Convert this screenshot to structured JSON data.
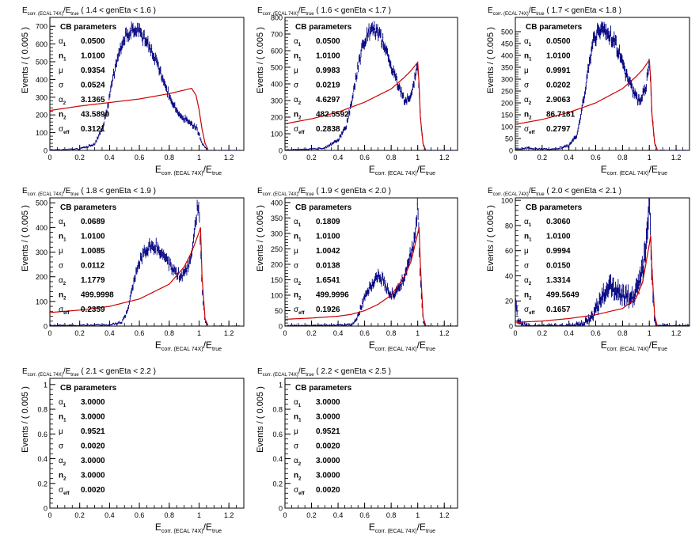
{
  "chart_data": [
    {
      "type": "histogram",
      "title_var": "E",
      "title_var_sub": "corr. (ECAL 74X)",
      "title_den": "E",
      "title_den_sub": "true",
      "title_range": "( 1.4 < genEta < 1.6 )",
      "ylabel": "Events / ( 0.005 )",
      "xlabel_main": "E",
      "xlabel_sub": "corr. (ECAL 74X)",
      "xlabel_den": "E",
      "xlabel_den_sub": "true",
      "xlim": [
        0,
        1.3
      ],
      "ylim": [
        0,
        750
      ],
      "x_ticks": [
        "0",
        "0.2",
        "0.4",
        "0.6",
        "0.8",
        "1",
        "1.2"
      ],
      "y_ticks": [
        0,
        100,
        200,
        300,
        400,
        500,
        600,
        700
      ],
      "legend_title": "CB parameters",
      "params": [
        {
          "sym": "α",
          "sub": "1",
          "value": "0.0500"
        },
        {
          "sym": "n",
          "sub": "1",
          "value": "1.0100"
        },
        {
          "sym": "μ",
          "sub": "",
          "value": "0.9354"
        },
        {
          "sym": "σ",
          "sub": "",
          "value": "0.0524"
        },
        {
          "sym": "α",
          "sub": "2",
          "value": "3.1365"
        },
        {
          "sym": "n",
          "sub": "2",
          "value": "43.5890"
        },
        {
          "sym": "σ",
          "sub": "eff",
          "value": "0.3121"
        }
      ],
      "data_series": {
        "color": "#000080",
        "x": [
          0.02,
          0.1,
          0.2,
          0.3,
          0.34,
          0.38,
          0.42,
          0.46,
          0.5,
          0.54,
          0.58,
          0.6,
          0.62,
          0.66,
          0.7,
          0.74,
          0.78,
          0.82,
          0.86,
          0.9,
          0.94,
          0.98,
          1.0,
          1.02,
          1.04,
          1.06
        ],
        "y": [
          3,
          5,
          8,
          35,
          100,
          210,
          390,
          540,
          630,
          680,
          690,
          670,
          640,
          600,
          520,
          440,
          350,
          270,
          210,
          180,
          150,
          130,
          90,
          45,
          15,
          3
        ]
      },
      "fit_series": {
        "color": "#cc0000",
        "x": [
          0.0,
          0.2,
          0.4,
          0.6,
          0.8,
          0.9,
          0.95,
          0.98,
          1.0,
          1.02,
          1.04,
          1.06
        ],
        "y": [
          225,
          250,
          270,
          290,
          320,
          340,
          350,
          310,
          230,
          120,
          40,
          5
        ]
      }
    },
    {
      "type": "histogram",
      "title_var": "E",
      "title_var_sub": "corr. (ECAL 74X)",
      "title_den": "E",
      "title_den_sub": "true",
      "title_range": "( 1.6 < genEta < 1.7 )",
      "ylabel": "Events / ( 0.005 )",
      "xlabel_main": "E",
      "xlabel_sub": "corr. (ECAL 74X)",
      "xlabel_den": "E",
      "xlabel_den_sub": "true",
      "xlim": [
        0,
        1.3
      ],
      "ylim": [
        0,
        800
      ],
      "x_ticks": [
        "0",
        "0.2",
        "0.4",
        "0.6",
        "0.8",
        "1",
        "1.2"
      ],
      "y_ticks": [
        0,
        100,
        200,
        300,
        400,
        500,
        600,
        700,
        800
      ],
      "legend_title": "CB parameters",
      "params": [
        {
          "sym": "α",
          "sub": "1",
          "value": "0.0500"
        },
        {
          "sym": "n",
          "sub": "1",
          "value": "1.0100"
        },
        {
          "sym": "μ",
          "sub": "",
          "value": "0.9983"
        },
        {
          "sym": "σ",
          "sub": "",
          "value": "0.0219"
        },
        {
          "sym": "α",
          "sub": "2",
          "value": "4.6297"
        },
        {
          "sym": "n",
          "sub": "2",
          "value": "482.5592"
        },
        {
          "sym": "σ",
          "sub": "eff",
          "value": "0.2838"
        }
      ],
      "data_series": {
        "color": "#000080",
        "x": [
          0.02,
          0.1,
          0.2,
          0.3,
          0.4,
          0.46,
          0.5,
          0.54,
          0.58,
          0.62,
          0.66,
          0.7,
          0.74,
          0.78,
          0.82,
          0.86,
          0.9,
          0.94,
          0.97,
          1.0,
          1.02,
          1.04,
          1.06
        ],
        "y": [
          3,
          5,
          8,
          15,
          60,
          140,
          280,
          460,
          610,
          700,
          730,
          710,
          650,
          560,
          460,
          380,
          300,
          320,
          400,
          520,
          200,
          40,
          3
        ]
      },
      "fit_series": {
        "color": "#cc0000",
        "x": [
          0.0,
          0.2,
          0.4,
          0.6,
          0.8,
          0.9,
          0.95,
          1.0,
          1.01,
          1.02,
          1.04,
          1.06
        ],
        "y": [
          160,
          190,
          230,
          290,
          370,
          440,
          480,
          530,
          400,
          200,
          40,
          3
        ]
      }
    },
    {
      "type": "histogram",
      "title_var": "E",
      "title_var_sub": "corr. (ECAL 74X)",
      "title_den": "E",
      "title_den_sub": "true",
      "title_range": "( 1.7 < genEta < 1.8 )",
      "ylabel": "Events / ( 0.005 )",
      "xlabel_main": "E",
      "xlabel_sub": "corr. (ECAL 74X)",
      "xlabel_den": "E",
      "xlabel_den_sub": "true",
      "xlim": [
        0,
        1.3
      ],
      "ylim": [
        0,
        560
      ],
      "x_ticks": [
        "0",
        "0.2",
        "0.4",
        "0.6",
        "0.8",
        "1",
        "1.2"
      ],
      "y_ticks": [
        0,
        50,
        100,
        150,
        200,
        250,
        300,
        350,
        400,
        450,
        500
      ],
      "legend_title": "CB parameters",
      "params": [
        {
          "sym": "α",
          "sub": "1",
          "value": "0.0500"
        },
        {
          "sym": "n",
          "sub": "1",
          "value": "1.0100"
        },
        {
          "sym": "μ",
          "sub": "",
          "value": "0.9991"
        },
        {
          "sym": "σ",
          "sub": "",
          "value": "0.0202"
        },
        {
          "sym": "α",
          "sub": "2",
          "value": "2.9063"
        },
        {
          "sym": "n",
          "sub": "2",
          "value": "86.7181"
        },
        {
          "sym": "σ",
          "sub": "eff",
          "value": "0.2797"
        }
      ],
      "data_series": {
        "color": "#000080",
        "x": [
          0.02,
          0.1,
          0.2,
          0.3,
          0.4,
          0.46,
          0.5,
          0.54,
          0.58,
          0.62,
          0.66,
          0.7,
          0.74,
          0.78,
          0.82,
          0.86,
          0.9,
          0.94,
          0.98,
          1.0,
          1.02,
          1.04,
          1.06
        ],
        "y": [
          5,
          10,
          5,
          5,
          20,
          60,
          180,
          330,
          450,
          500,
          510,
          490,
          460,
          400,
          330,
          270,
          220,
          210,
          280,
          390,
          150,
          30,
          3
        ]
      },
      "fit_series": {
        "color": "#cc0000",
        "x": [
          0.0,
          0.2,
          0.4,
          0.6,
          0.8,
          0.9,
          0.95,
          1.0,
          1.01,
          1.02,
          1.04,
          1.06
        ],
        "y": [
          110,
          130,
          160,
          200,
          260,
          310,
          340,
          380,
          300,
          150,
          30,
          3
        ]
      }
    },
    {
      "type": "histogram",
      "title_var": "E",
      "title_var_sub": "corr. (ECAL 74X)",
      "title_den": "E",
      "title_den_sub": "true",
      "title_range": "( 1.8 < genEta < 1.9 )",
      "ylabel": "Events / ( 0.005 )",
      "xlabel_main": "E",
      "xlabel_sub": "corr. (ECAL 74X)",
      "xlabel_den": "E",
      "xlabel_den_sub": "true",
      "xlim": [
        0,
        1.3
      ],
      "ylim": [
        0,
        520
      ],
      "x_ticks": [
        "0",
        "0.2",
        "0.4",
        "0.6",
        "0.8",
        "1",
        "1.2"
      ],
      "y_ticks": [
        0,
        100,
        200,
        300,
        400,
        500
      ],
      "legend_title": "CB parameters",
      "params": [
        {
          "sym": "α",
          "sub": "1",
          "value": "0.0689"
        },
        {
          "sym": "n",
          "sub": "1",
          "value": "1.0100"
        },
        {
          "sym": "μ",
          "sub": "",
          "value": "1.0085"
        },
        {
          "sym": "σ",
          "sub": "",
          "value": "0.0112"
        },
        {
          "sym": "α",
          "sub": "2",
          "value": "1.1779"
        },
        {
          "sym": "n",
          "sub": "2",
          "value": "499.9998"
        },
        {
          "sym": "σ",
          "sub": "eff",
          "value": "0.2359"
        }
      ],
      "data_series": {
        "color": "#000080",
        "x": [
          0.02,
          0.2,
          0.4,
          0.48,
          0.52,
          0.56,
          0.6,
          0.64,
          0.68,
          0.72,
          0.76,
          0.8,
          0.84,
          0.88,
          0.92,
          0.96,
          0.99,
          1.0,
          1.02,
          1.04,
          1.06
        ],
        "y": [
          3,
          3,
          5,
          15,
          60,
          170,
          260,
          310,
          330,
          320,
          290,
          250,
          220,
          200,
          230,
          330,
          480,
          500,
          150,
          20,
          3
        ]
      },
      "fit_series": {
        "color": "#cc0000",
        "x": [
          0.0,
          0.2,
          0.4,
          0.6,
          0.8,
          0.9,
          0.95,
          1.0,
          1.01,
          1.02,
          1.04,
          1.06
        ],
        "y": [
          55,
          65,
          80,
          110,
          170,
          240,
          300,
          380,
          400,
          200,
          30,
          3
        ]
      }
    },
    {
      "type": "histogram",
      "title_var": "E",
      "title_var_sub": "corr. (ECAL 74X)",
      "title_den": "E",
      "title_den_sub": "true",
      "title_range": "( 1.9 < genEta < 2.0 )",
      "ylabel": "Events / ( 0.005 )",
      "xlabel_main": "E",
      "xlabel_sub": "corr. (ECAL 74X)",
      "xlabel_den": "E",
      "xlabel_den_sub": "true",
      "xlim": [
        0,
        1.3
      ],
      "ylim": [
        0,
        415
      ],
      "x_ticks": [
        "0",
        "0.2",
        "0.4",
        "0.6",
        "0.8",
        "1",
        "1.2"
      ],
      "y_ticks": [
        0,
        50,
        100,
        150,
        200,
        250,
        300,
        350,
        400
      ],
      "legend_title": "CB parameters",
      "params": [
        {
          "sym": "α",
          "sub": "1",
          "value": "0.1809"
        },
        {
          "sym": "n",
          "sub": "1",
          "value": "1.0100"
        },
        {
          "sym": "μ",
          "sub": "",
          "value": "1.0042"
        },
        {
          "sym": "σ",
          "sub": "",
          "value": "0.0138"
        },
        {
          "sym": "α",
          "sub": "2",
          "value": "1.6541"
        },
        {
          "sym": "n",
          "sub": "2",
          "value": "499.9996"
        },
        {
          "sym": "σ",
          "sub": "eff",
          "value": "0.1926"
        }
      ],
      "data_series": {
        "color": "#000080",
        "x": [
          0.02,
          0.2,
          0.4,
          0.5,
          0.54,
          0.58,
          0.62,
          0.66,
          0.7,
          0.74,
          0.78,
          0.82,
          0.86,
          0.9,
          0.94,
          0.98,
          1.0,
          1.02,
          1.04,
          1.06
        ],
        "y": [
          2,
          2,
          3,
          5,
          20,
          70,
          110,
          140,
          160,
          150,
          110,
          100,
          120,
          160,
          220,
          290,
          390,
          150,
          20,
          2
        ]
      },
      "fit_series": {
        "color": "#cc0000",
        "x": [
          0.0,
          0.2,
          0.4,
          0.5,
          0.6,
          0.7,
          0.8,
          0.9,
          0.95,
          1.0,
          1.01,
          1.02,
          1.04,
          1.06
        ],
        "y": [
          22,
          26,
          32,
          38,
          50,
          70,
          100,
          160,
          210,
          300,
          320,
          200,
          30,
          2
        ]
      }
    },
    {
      "type": "histogram",
      "title_var": "E",
      "title_var_sub": "corr. (ECAL 74X)",
      "title_den": "E",
      "title_den_sub": "true",
      "title_range": "( 2.0 < genEta < 2.1 )",
      "ylabel": "Events / ( 0.005 )",
      "xlabel_main": "E",
      "xlabel_sub": "corr. (ECAL 74X)",
      "xlabel_den": "E",
      "xlabel_den_sub": "true",
      "xlim": [
        0,
        1.3
      ],
      "ylim": [
        0,
        102
      ],
      "x_ticks": [
        "0",
        "0.2",
        "0.4",
        "0.6",
        "0.8",
        "1",
        "1.2"
      ],
      "y_ticks": [
        0,
        20,
        40,
        60,
        80,
        100
      ],
      "legend_title": "CB parameters",
      "params": [
        {
          "sym": "α",
          "sub": "1",
          "value": "0.3060"
        },
        {
          "sym": "n",
          "sub": "1",
          "value": "1.0100"
        },
        {
          "sym": "μ",
          "sub": "",
          "value": "0.9994"
        },
        {
          "sym": "σ",
          "sub": "",
          "value": "0.0150"
        },
        {
          "sym": "α",
          "sub": "2",
          "value": "1.3314"
        },
        {
          "sym": "n",
          "sub": "2",
          "value": "499.5649"
        },
        {
          "sym": "σ",
          "sub": "eff",
          "value": "0.1657"
        }
      ],
      "data_series": {
        "color": "#000080",
        "x": [
          0.01,
          0.02,
          0.1,
          0.2,
          0.3,
          0.4,
          0.5,
          0.55,
          0.6,
          0.64,
          0.68,
          0.72,
          0.76,
          0.8,
          0.84,
          0.88,
          0.92,
          0.96,
          0.98,
          1.0,
          1.02,
          1.04,
          1.06
        ],
        "y": [
          15,
          3,
          0,
          0,
          0,
          0,
          2,
          5,
          12,
          22,
          28,
          30,
          28,
          25,
          24,
          22,
          30,
          50,
          70,
          95,
          40,
          5,
          0
        ]
      },
      "fit_series": {
        "color": "#cc0000",
        "x": [
          0.0,
          0.2,
          0.4,
          0.6,
          0.8,
          0.9,
          0.95,
          1.0,
          1.01,
          1.02,
          1.04,
          1.06
        ],
        "y": [
          3,
          4,
          6,
          9,
          14,
          22,
          35,
          65,
          72,
          45,
          8,
          0
        ]
      }
    },
    {
      "type": "histogram",
      "title_var": "E",
      "title_var_sub": "corr. (ECAL 74X)",
      "title_den": "E",
      "title_den_sub": "true",
      "title_range": "( 2.1 < genEta < 2.2 )",
      "ylabel": "Events / ( 0.005 )",
      "xlabel_main": "E",
      "xlabel_sub": "corr. (ECAL 74X)",
      "xlabel_den": "E",
      "xlabel_den_sub": "true",
      "xlim": [
        0,
        1.3
      ],
      "ylim": [
        0,
        1.05
      ],
      "x_ticks": [
        "0",
        "0.2",
        "0.4",
        "0.6",
        "0.8",
        "1",
        "1.2"
      ],
      "y_ticks": [
        0,
        0.2,
        0.4,
        0.6,
        0.8,
        1
      ],
      "legend_title": "CB parameters",
      "params": [
        {
          "sym": "α",
          "sub": "1",
          "value": "3.0000"
        },
        {
          "sym": "n",
          "sub": "1",
          "value": "3.0000"
        },
        {
          "sym": "μ",
          "sub": "",
          "value": "0.9521"
        },
        {
          "sym": "σ",
          "sub": "",
          "value": "0.0020"
        },
        {
          "sym": "α",
          "sub": "2",
          "value": "3.0000"
        },
        {
          "sym": "n",
          "sub": "2",
          "value": "3.0000"
        },
        {
          "sym": "σ",
          "sub": "eff",
          "value": "0.0020"
        }
      ],
      "data_series": null,
      "fit_series": null
    },
    {
      "type": "histogram",
      "title_var": "E",
      "title_var_sub": "corr. (ECAL 74X)",
      "title_den": "E",
      "title_den_sub": "true",
      "title_range": "( 2.2 < genEta < 2.5 )",
      "ylabel": "Events / ( 0.005 )",
      "xlabel_main": "E",
      "xlabel_sub": "corr. (ECAL 74X)",
      "xlabel_den": "E",
      "xlabel_den_sub": "true",
      "xlim": [
        0,
        1.3
      ],
      "ylim": [
        0,
        1.05
      ],
      "x_ticks": [
        "0",
        "0.2",
        "0.4",
        "0.6",
        "0.8",
        "1",
        "1.2"
      ],
      "y_ticks": [
        0,
        0.2,
        0.4,
        0.6,
        0.8,
        1
      ],
      "legend_title": "CB parameters",
      "params": [
        {
          "sym": "α",
          "sub": "1",
          "value": "3.0000"
        },
        {
          "sym": "n",
          "sub": "1",
          "value": "3.0000"
        },
        {
          "sym": "μ",
          "sub": "",
          "value": "0.9521"
        },
        {
          "sym": "σ",
          "sub": "",
          "value": "0.0020"
        },
        {
          "sym": "α",
          "sub": "2",
          "value": "3.0000"
        },
        {
          "sym": "n",
          "sub": "2",
          "value": "3.0000"
        },
        {
          "sym": "σ",
          "sub": "eff",
          "value": "0.0020"
        }
      ],
      "data_series": null,
      "fit_series": null
    }
  ]
}
